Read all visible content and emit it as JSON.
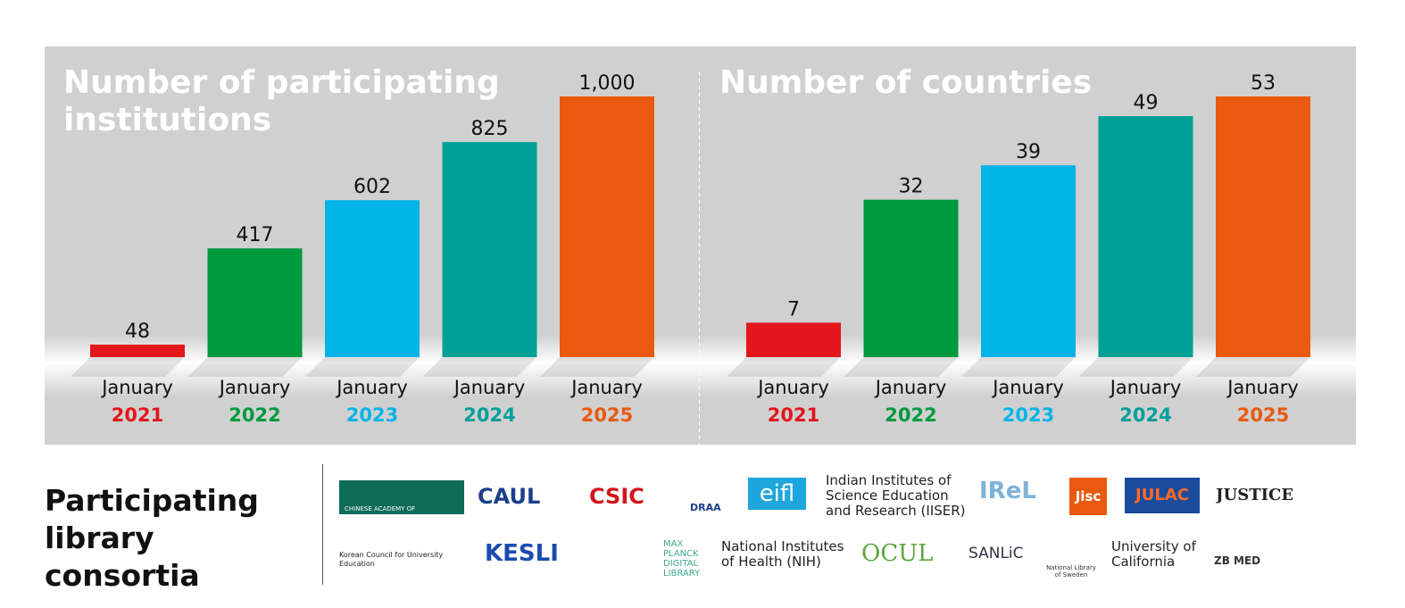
{
  "chart_data": [
    {
      "type": "bar",
      "title": "Number of participating institutions",
      "categories": [
        "January 2021",
        "January 2022",
        "January 2023",
        "January 2024",
        "January 2025"
      ],
      "values": [
        48,
        417,
        602,
        825,
        1000
      ],
      "value_labels": [
        "48",
        "417",
        "602",
        "825",
        "1,000"
      ],
      "colors": [
        "#e3161c",
        "#009a3e",
        "#00b5e6",
        "#00a099",
        "#e95a0f"
      ]
    },
    {
      "type": "bar",
      "title": "Number of countries",
      "categories": [
        "January 2021",
        "January 2022",
        "January 2023",
        "January 2024",
        "January 2025"
      ],
      "values": [
        7,
        32,
        39,
        49,
        53
      ],
      "colors": [
        "#e3161c",
        "#009a3e",
        "#00b5e6",
        "#00a099",
        "#e95a0f"
      ]
    }
  ],
  "consortia": {
    "title": "Participating library consortia",
    "logos": [
      "CHINESE ACADEMY OF AGRICULTURAL SCIENCES",
      "CAUL",
      "CSIC",
      "DRAA",
      "eifl",
      "Indian Institutes of Science Education and Research (IISER)",
      "IReL",
      "Jisc",
      "JULAC",
      "JUSTICE",
      "Korean Council for University Education",
      "KESLI",
      "MAX PLANCK DIGITAL LIBRARY",
      "National Institutes of Health (NIH)",
      "OCUL",
      "SANLiC",
      "National Library of Sweden",
      "University of California",
      "ZB MED"
    ]
  }
}
